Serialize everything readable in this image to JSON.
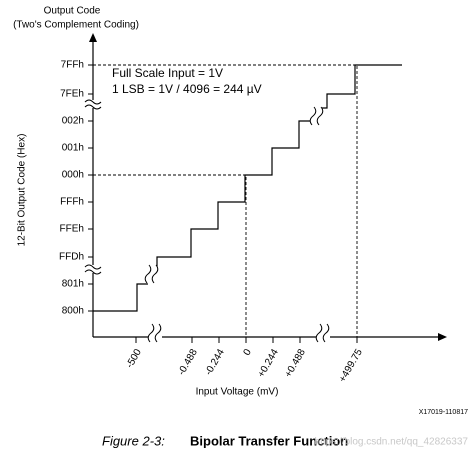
{
  "header": {
    "title": "Output Code",
    "subtitle": "(Two's Complement Coding)"
  },
  "y_axis": {
    "title": "12-Bit Output Code (Hex)",
    "labels": [
      "7FFh",
      "7FEh",
      "002h",
      "001h",
      "000h",
      "FFFh",
      "FFEh",
      "FFDh",
      "801h",
      "800h"
    ]
  },
  "x_axis": {
    "title": "Input Voltage (mV)",
    "labels": [
      "-500",
      "-0.488",
      "-0.244",
      "0",
      "+0.244",
      "+0.488",
      "+499.75"
    ]
  },
  "notes": [
    "Full Scale Input = 1V",
    "1 LSB = 1V / 4096 = 244 µV"
  ],
  "figure_id": "X17019-110817",
  "caption": {
    "number": "Figure 2-3:",
    "title": "Bipolar Transfer Function"
  },
  "watermark": "https://blog.csdn.net/qq_42826337"
}
